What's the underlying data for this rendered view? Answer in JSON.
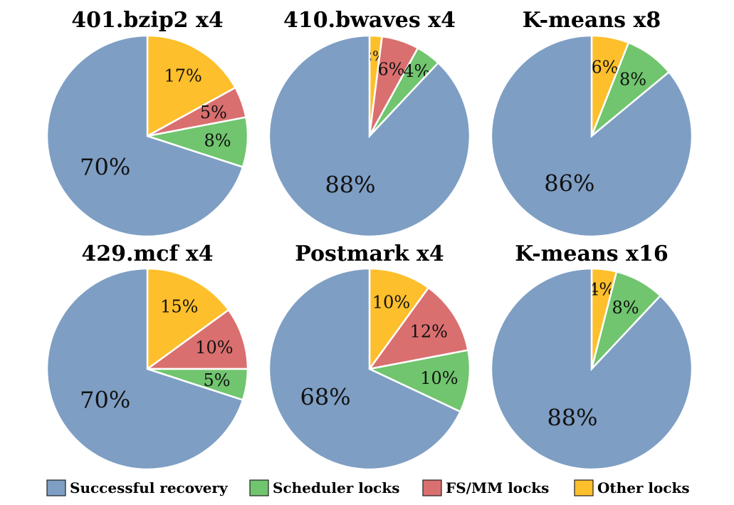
{
  "legend": [
    {
      "key": "successful",
      "label": "Successful recovery",
      "color": "#7E9EC4"
    },
    {
      "key": "scheduler",
      "label": "Scheduler locks",
      "color": "#70C56E"
    },
    {
      "key": "fsmm",
      "label": "FS/MM locks",
      "color": "#DA6F6F"
    },
    {
      "key": "other",
      "label": "Other locks",
      "color": "#FDBF2B"
    }
  ],
  "chart_data": [
    {
      "type": "pie",
      "title": "401.bzip2 x4",
      "slices": [
        {
          "key": "other",
          "label": "Other locks",
          "value": 17,
          "text": "17%"
        },
        {
          "key": "fsmm",
          "label": "FS/MM locks",
          "value": 5,
          "text": "5%"
        },
        {
          "key": "scheduler",
          "label": "Scheduler locks",
          "value": 8,
          "text": "8%"
        },
        {
          "key": "successful",
          "label": "Successful recovery",
          "value": 70,
          "text": "70%"
        }
      ]
    },
    {
      "type": "pie",
      "title": "410.bwaves x4",
      "slices": [
        {
          "key": "other",
          "label": "Other locks",
          "value": 2,
          "text": "2%"
        },
        {
          "key": "fsmm",
          "label": "FS/MM locks",
          "value": 6,
          "text": "6%"
        },
        {
          "key": "scheduler",
          "label": "Scheduler locks",
          "value": 4,
          "text": "4%"
        },
        {
          "key": "successful",
          "label": "Successful recovery",
          "value": 88,
          "text": "88%"
        }
      ]
    },
    {
      "type": "pie",
      "title": "K-means x8",
      "slices": [
        {
          "key": "other",
          "label": "Other locks",
          "value": 6,
          "text": "6%"
        },
        {
          "key": "fsmm",
          "label": "FS/MM locks",
          "value": 0,
          "text": ""
        },
        {
          "key": "scheduler",
          "label": "Scheduler locks",
          "value": 8,
          "text": "8%"
        },
        {
          "key": "successful",
          "label": "Successful recovery",
          "value": 86,
          "text": "86%"
        }
      ]
    },
    {
      "type": "pie",
      "title": "429.mcf x4",
      "slices": [
        {
          "key": "other",
          "label": "Other locks",
          "value": 15,
          "text": "15%"
        },
        {
          "key": "fsmm",
          "label": "FS/MM locks",
          "value": 10,
          "text": "10%"
        },
        {
          "key": "scheduler",
          "label": "Scheduler locks",
          "value": 5,
          "text": "5%"
        },
        {
          "key": "successful",
          "label": "Successful recovery",
          "value": 70,
          "text": "70%"
        }
      ]
    },
    {
      "type": "pie",
      "title": "Postmark x4",
      "slices": [
        {
          "key": "other",
          "label": "Other locks",
          "value": 10,
          "text": "10%"
        },
        {
          "key": "fsmm",
          "label": "FS/MM locks",
          "value": 12,
          "text": "12%"
        },
        {
          "key": "scheduler",
          "label": "Scheduler locks",
          "value": 10,
          "text": "10%"
        },
        {
          "key": "successful",
          "label": "Successful recovery",
          "value": 68,
          "text": "68%"
        }
      ]
    },
    {
      "type": "pie",
      "title": "K-means x16",
      "slices": [
        {
          "key": "other",
          "label": "Other locks",
          "value": 4,
          "text": "4%"
        },
        {
          "key": "fsmm",
          "label": "FS/MM locks",
          "value": 0,
          "text": ""
        },
        {
          "key": "scheduler",
          "label": "Scheduler locks",
          "value": 8,
          "text": "8%"
        },
        {
          "key": "successful",
          "label": "Successful recovery",
          "value": 88,
          "text": "88%"
        }
      ]
    }
  ]
}
